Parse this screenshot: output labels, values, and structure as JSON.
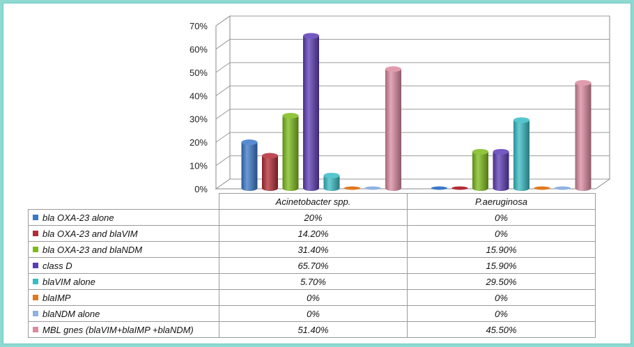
{
  "chart_data": {
    "type": "bar",
    "categories": [
      "Acinetobacter spp.",
      "P.aeruginosa"
    ],
    "y_ticks": [
      "0%",
      "10%",
      "20%",
      "30%",
      "40%",
      "50%",
      "60%",
      "70%"
    ],
    "ylim": [
      0,
      70
    ],
    "grid": true,
    "legend": "data-table-below",
    "series": [
      {
        "name": "bla OXA-23 alone",
        "color": "#3a78c9",
        "values": [
          20,
          0
        ],
        "labels": [
          "20%",
          "0%"
        ]
      },
      {
        "name": "bla  OXA-23 and blaVIM",
        "color": "#b32a35",
        "values": [
          14.2,
          0
        ],
        "labels": [
          "14.20%",
          "0%"
        ]
      },
      {
        "name": "bla   OXA-23 and  blaNDM",
        "color": "#7cbb1a",
        "values": [
          31.4,
          15.9
        ],
        "labels": [
          "31.40%",
          "15.90%"
        ]
      },
      {
        "name": "class D",
        "color": "#5c3cb6",
        "values": [
          65.7,
          15.9
        ],
        "labels": [
          "65.70%",
          "15.90%"
        ]
      },
      {
        "name": "blaVIM  alone",
        "color": "#38bcc4",
        "values": [
          5.7,
          29.5
        ],
        "labels": [
          "5.70%",
          "29.50%"
        ]
      },
      {
        "name": "blaIMP",
        "color": "#e0781e",
        "values": [
          0,
          0
        ],
        "labels": [
          "0%",
          "0%"
        ]
      },
      {
        "name": "blaNDM alone",
        "color": "#8fb2e0",
        "values": [
          0,
          0
        ],
        "labels": [
          "0%",
          "0%"
        ]
      },
      {
        "name": "MBL gnes (blaVIM+blaIMP +blaNDM)",
        "color": "#db8aa0",
        "values": [
          51.4,
          45.5
        ],
        "labels": [
          "51.40%",
          "45.50%"
        ]
      }
    ]
  }
}
